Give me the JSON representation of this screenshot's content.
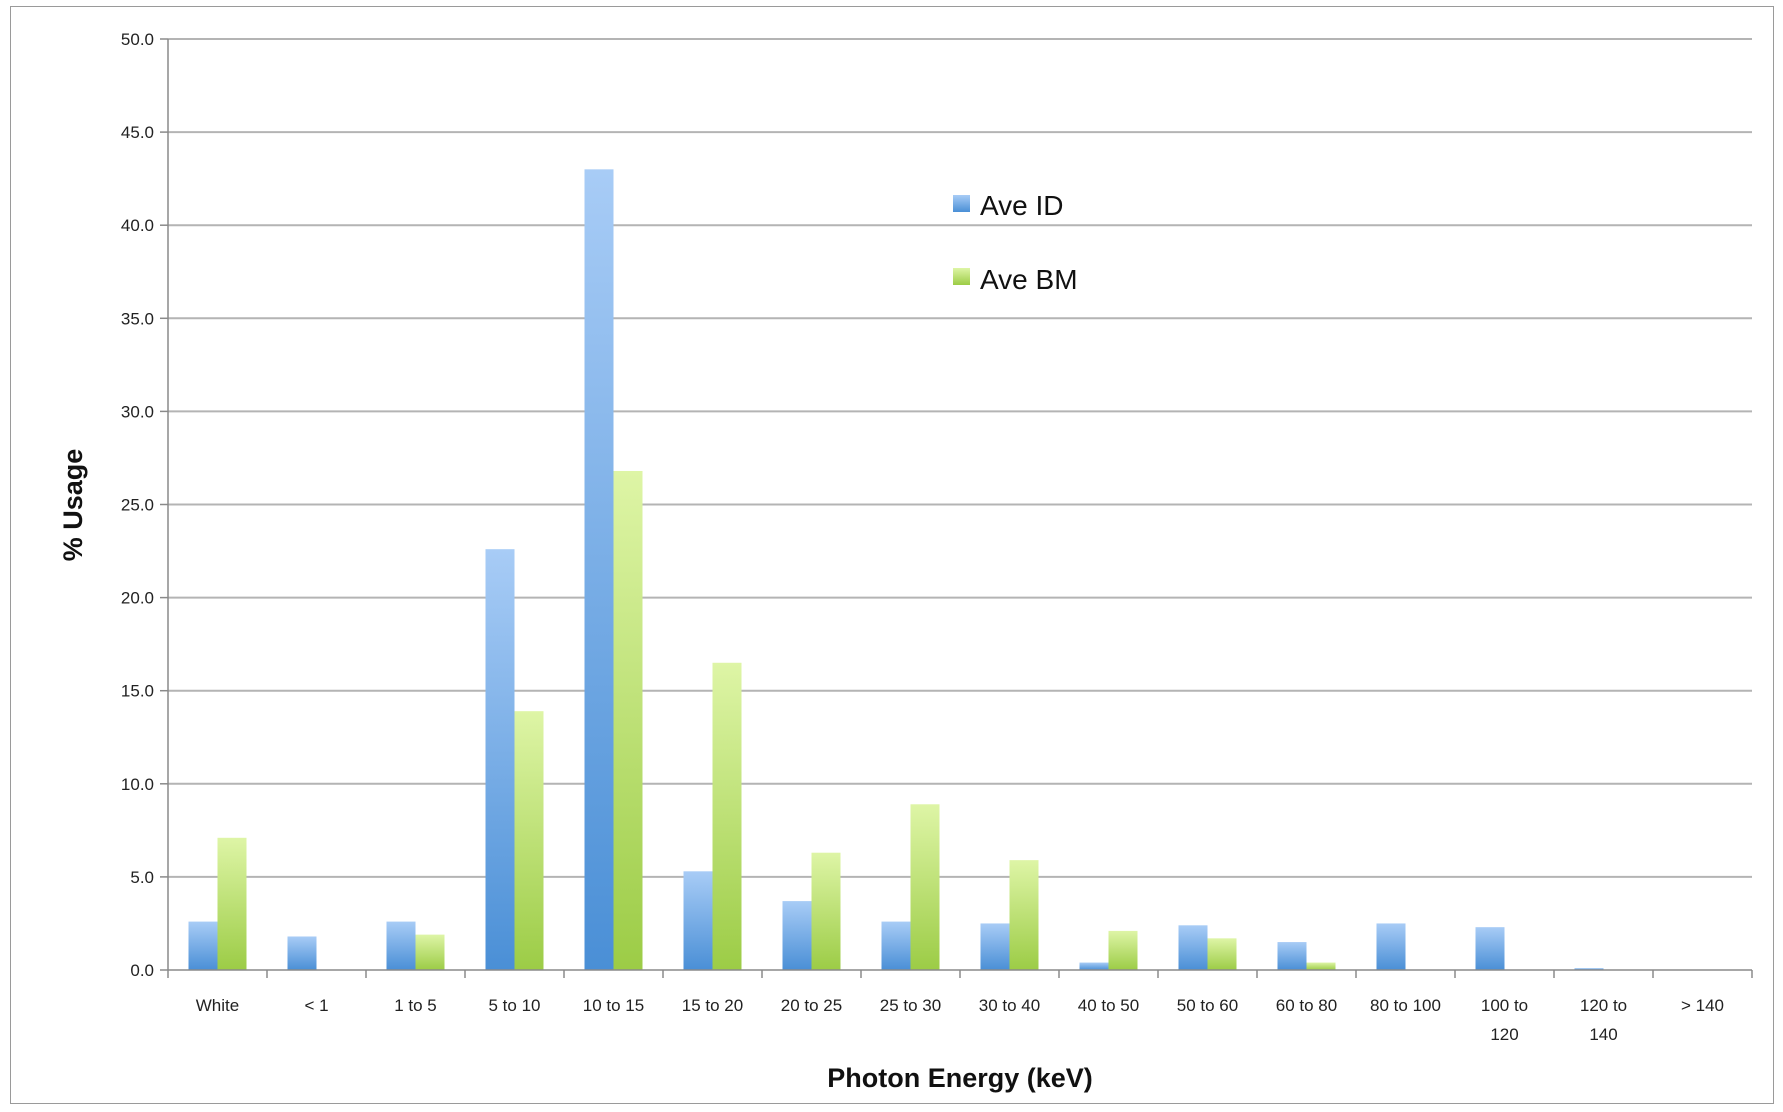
{
  "chart_data": {
    "type": "bar",
    "title": "",
    "xlabel": "Photon Energy (keV)",
    "ylabel": "% Usage",
    "ylim": [
      0,
      50
    ],
    "yticks": [
      "0.0",
      "5.0",
      "10.0",
      "15.0",
      "20.0",
      "25.0",
      "30.0",
      "35.0",
      "40.0",
      "45.0",
      "50.0"
    ],
    "grid": true,
    "legend_position": "top-center",
    "categories": [
      "White",
      "< 1",
      "1 to 5",
      "5 to 10",
      "10 to 15",
      "15 to 20",
      "20 to 25",
      "25 to 30",
      "30 to 40",
      "40 to 50",
      "50 to 60",
      "60 to 80",
      "80 to 100",
      "100 to 120",
      "120 to 140",
      "> 140"
    ],
    "series": [
      {
        "name": "Ave ID",
        "color": "#5B9BD5",
        "values": [
          2.6,
          1.8,
          2.6,
          22.6,
          43.0,
          5.3,
          3.7,
          2.6,
          2.5,
          0.4,
          2.4,
          1.5,
          2.5,
          2.3,
          0.1,
          0.0
        ]
      },
      {
        "name": "Ave BM",
        "color": "#A9D15A",
        "values": [
          7.1,
          0.0,
          1.9,
          13.9,
          26.8,
          16.5,
          6.3,
          8.9,
          5.9,
          2.1,
          1.7,
          0.4,
          0.0,
          0.0,
          0.0,
          0.0
        ]
      }
    ]
  }
}
